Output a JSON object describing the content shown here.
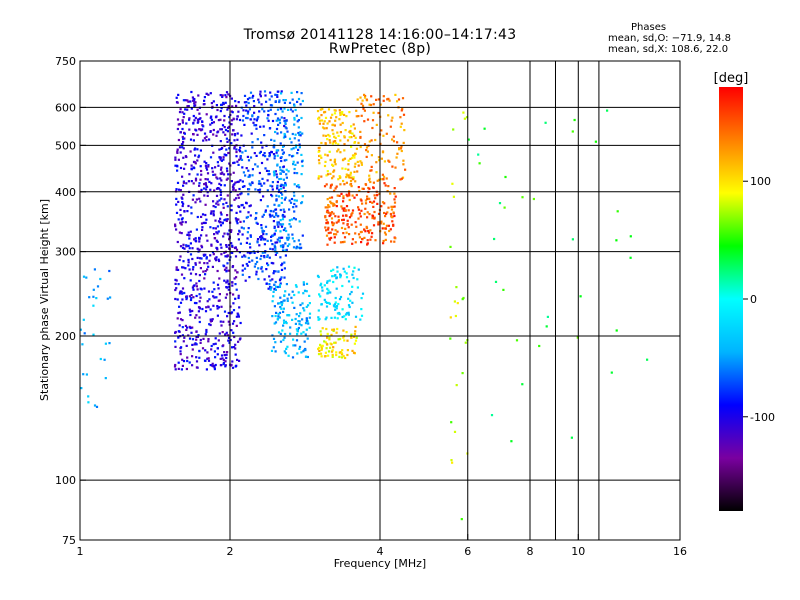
{
  "title": "Tromsø 20141128 14:16:00–14:17:43",
  "subtitle": "RwPretec (8p)",
  "phases": {
    "title": "Phases",
    "o_line": "mean, sd,O: −71.9, 14.8",
    "x_line": "mean, sd,X: 108.6, 22.0"
  },
  "chart_data": {
    "type": "scatter",
    "title": "Tromsø 20141128 14:16:00–14:17:43",
    "subtitle": "RwPretec (8p)",
    "xlabel": "Frequency [MHz]",
    "ylabel": "Stationary phase Virtual Height [km]",
    "xscale": "log",
    "yscale": "log",
    "xlim": [
      1,
      16
    ],
    "ylim": [
      75,
      750
    ],
    "x_ticks": [
      1,
      2,
      4,
      6,
      8,
      10,
      16
    ],
    "y_ticks": [
      75,
      100,
      200,
      300,
      400,
      500,
      600,
      750
    ],
    "grid": true,
    "colorbar": {
      "label": "[deg]",
      "range": [
        -180,
        180
      ],
      "ticks": [
        -100,
        0,
        100
      ],
      "colors": [
        "#000000",
        "#7a00a0",
        "#0000ff",
        "#00b4ff",
        "#00ffff",
        "#00ff00",
        "#ffff00",
        "#ff8000",
        "#ff0000"
      ]
    },
    "clusters": [
      {
        "x": [
          1.55,
          2.1
        ],
        "y": [
          170,
          650
        ],
        "phase": -105,
        "count": 900
      },
      {
        "x": [
          2.1,
          2.6
        ],
        "y": [
          250,
          650
        ],
        "phase": -80,
        "count": 380
      },
      {
        "x": [
          2.45,
          2.8
        ],
        "y": [
          300,
          650
        ],
        "phase": -55,
        "count": 200
      },
      {
        "x": [
          3.0,
          3.6
        ],
        "y": [
          420,
          600
        ],
        "phase": 110,
        "count": 160
      },
      {
        "x": [
          3.1,
          4.3
        ],
        "y": [
          310,
          420
        ],
        "phase": 150,
        "count": 260
      },
      {
        "x": [
          3.6,
          4.5
        ],
        "y": [
          420,
          640
        ],
        "phase": 130,
        "count": 120
      },
      {
        "x": [
          2.4,
          2.9
        ],
        "y": [
          180,
          260
        ],
        "phase": -40,
        "count": 140
      },
      {
        "x": [
          3.0,
          3.6
        ],
        "y": [
          180,
          210
        ],
        "phase": 100,
        "count": 80
      },
      {
        "x": [
          3.0,
          3.7
        ],
        "y": [
          215,
          280
        ],
        "phase": -20,
        "count": 100
      },
      {
        "x": [
          1.0,
          1.15
        ],
        "y": [
          140,
          280
        ],
        "phase": -45,
        "count": 30
      },
      {
        "x": [
          5.5,
          6.0
        ],
        "y": [
          80,
          650
        ],
        "phase": 80,
        "count": 25
      },
      {
        "x": [
          6.0,
          14.0
        ],
        "y": [
          120,
          650
        ],
        "phase": 40,
        "count": 35
      }
    ]
  }
}
